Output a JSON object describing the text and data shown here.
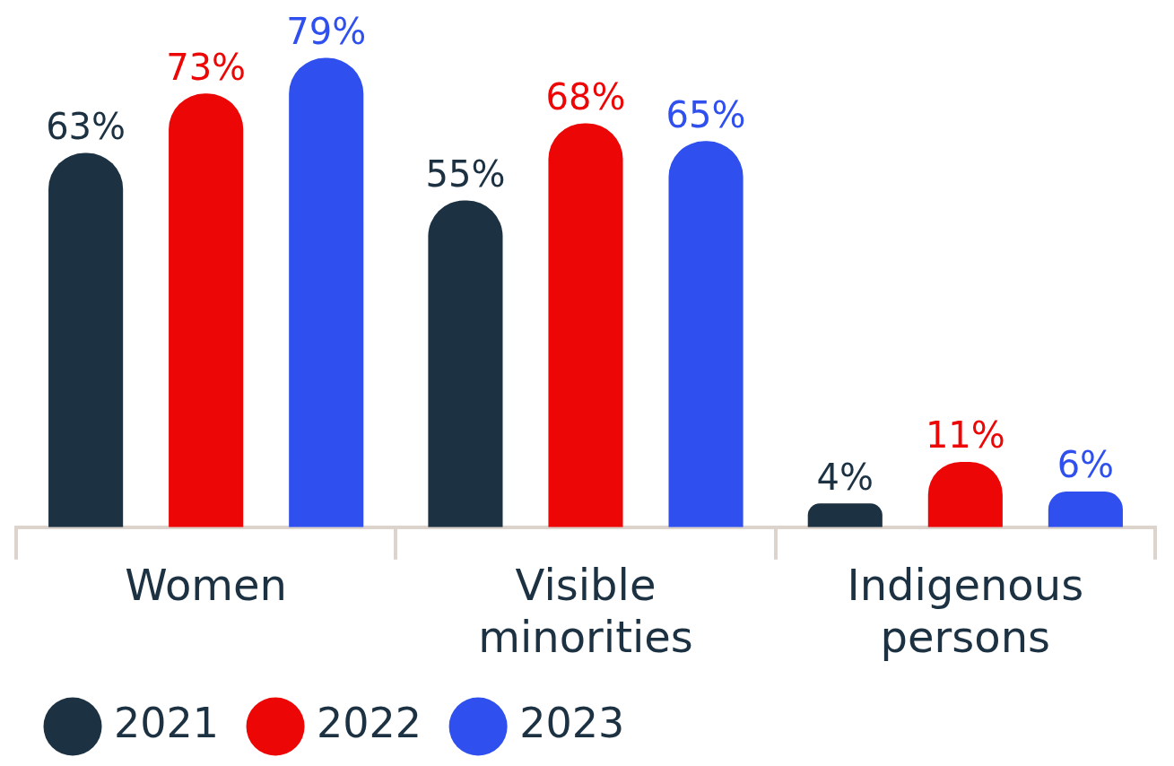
{
  "chart_data": {
    "type": "bar",
    "categories": [
      "Women",
      "Visible minorities",
      "Indigenous persons"
    ],
    "series": [
      {
        "name": "2021",
        "color": "#1c3142",
        "values": [
          63,
          55,
          4
        ],
        "value_labels": [
          "63%",
          "55%",
          "4%"
        ]
      },
      {
        "name": "2022",
        "color": "#ec0606",
        "values": [
          73,
          68,
          11
        ],
        "value_labels": [
          "73%",
          "68%",
          "11%"
        ]
      },
      {
        "name": "2023",
        "color": "#2f50ee",
        "values": [
          79,
          65,
          6
        ],
        "value_labels": [
          "79%",
          "65%",
          "6%"
        ]
      }
    ],
    "legend": "bottom left",
    "grid": false
  }
}
